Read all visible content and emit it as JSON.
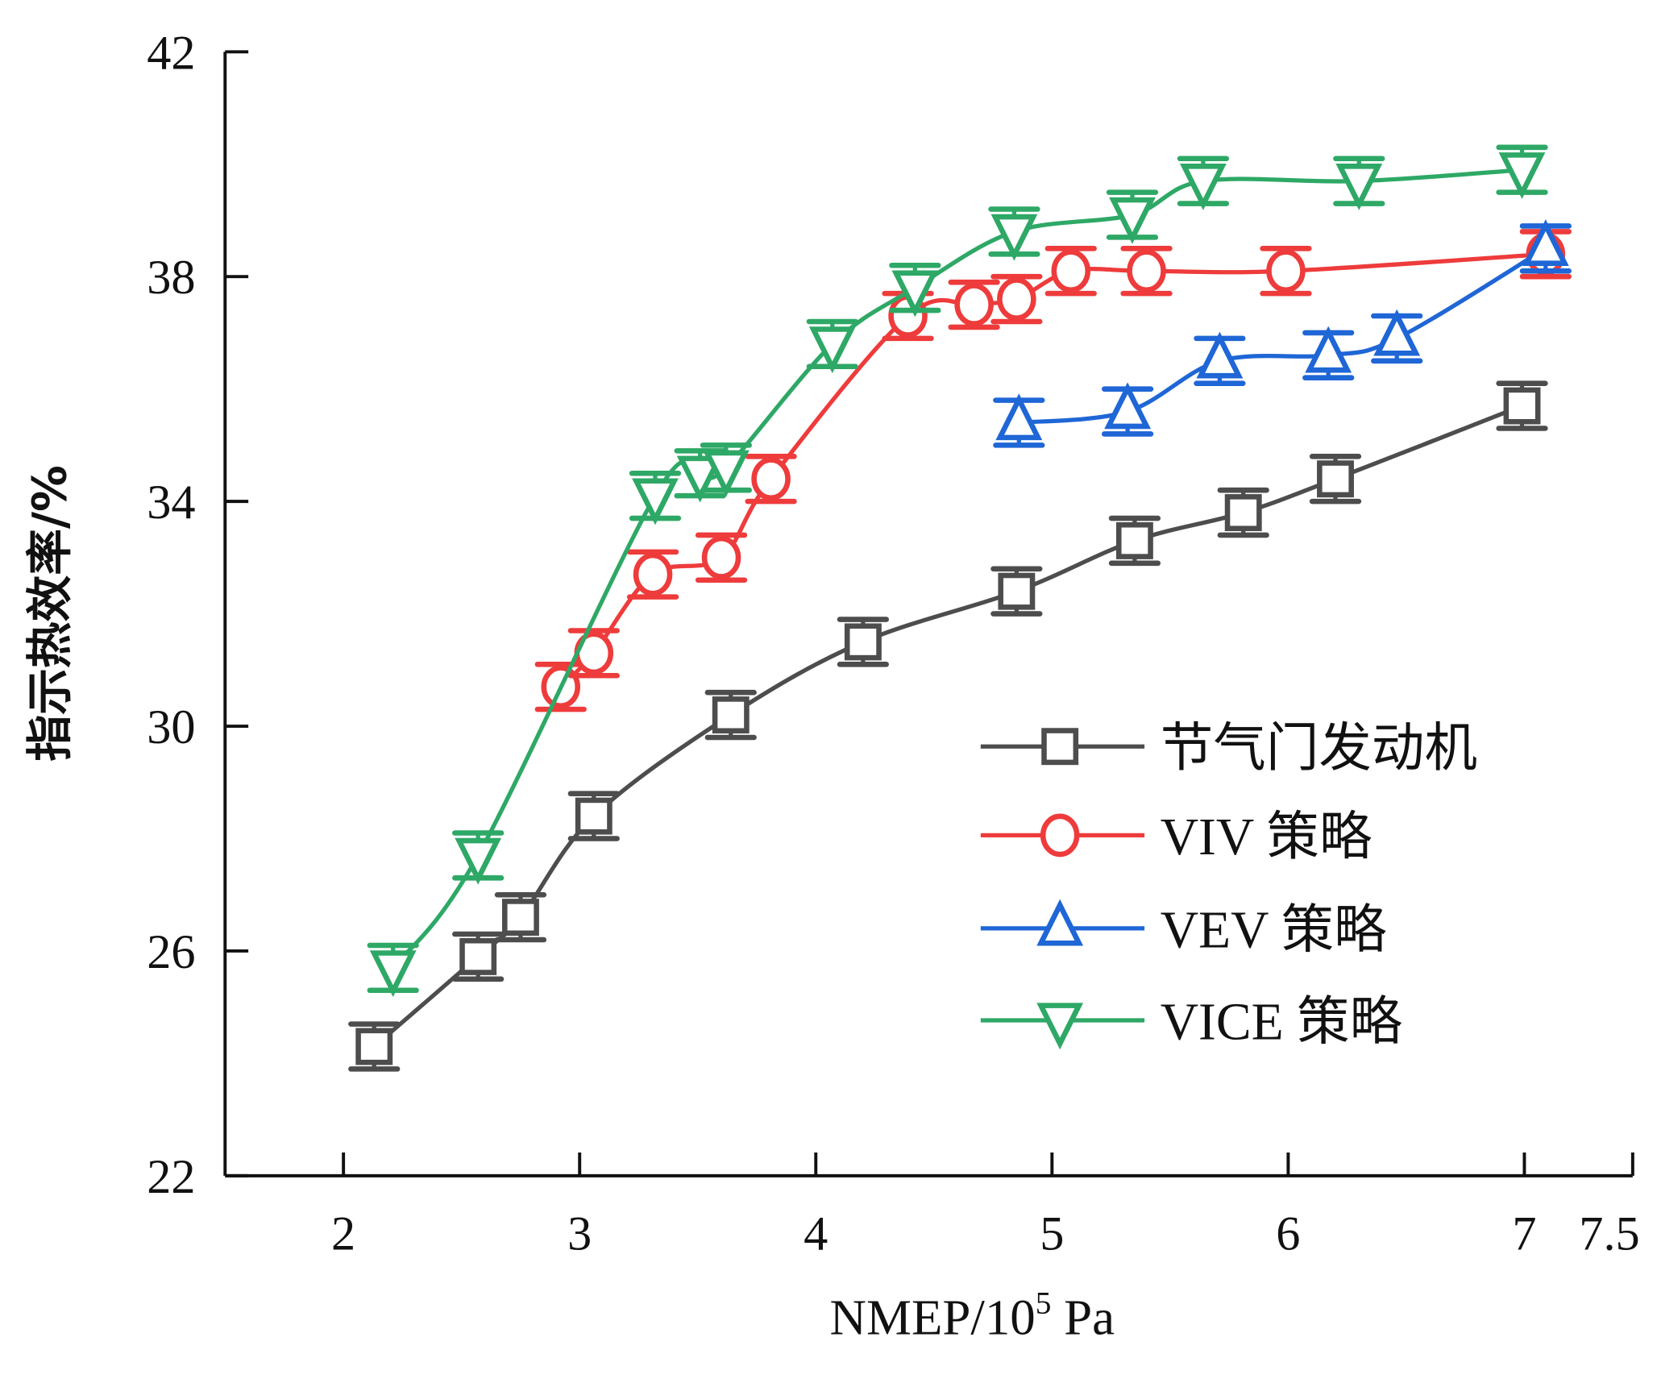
{
  "chart_data": {
    "type": "line",
    "title": "",
    "xlabel": "NMEP/10",
    "xlabel_sup": "5",
    "xlabel_unit": " Pa",
    "ylabel": "指示热效率/%",
    "xlim": [
      1.5,
      7.5
    ],
    "ylim": [
      22,
      42
    ],
    "xticks": [
      2,
      3,
      4,
      5,
      6,
      7,
      7.5
    ],
    "xtick_labels": [
      "2",
      "3",
      "4",
      "5",
      "6",
      "7",
      "7.5"
    ],
    "yticks": [
      22,
      26,
      30,
      34,
      38,
      42
    ],
    "ytick_labels": [
      "22",
      "26",
      "30",
      "34",
      "38",
      "42"
    ],
    "grid": false,
    "legend_position": "bottom-right",
    "error_bar": 0.4,
    "series": [
      {
        "name": "节气门发动机",
        "marker": "square",
        "color": "#4d4d4d",
        "x": [
          2.13,
          2.57,
          2.75,
          3.06,
          3.64,
          4.2,
          4.85,
          5.35,
          5.81,
          6.2,
          6.99
        ],
        "y": [
          24.3,
          25.9,
          26.6,
          28.4,
          30.2,
          31.5,
          32.4,
          33.3,
          33.8,
          34.4,
          35.7
        ]
      },
      {
        "name": "VIV 策略",
        "marker": "circle",
        "color": "#ee3b3b",
        "x": [
          2.92,
          3.06,
          3.31,
          3.6,
          3.81,
          4.39,
          4.67,
          4.85,
          5.08,
          5.4,
          5.99,
          7.09
        ],
        "y": [
          30.7,
          31.3,
          32.7,
          33.0,
          34.4,
          37.3,
          37.5,
          37.6,
          38.1,
          38.1,
          38.1,
          38.4
        ]
      },
      {
        "name": "VEV 策略",
        "marker": "triangle-up",
        "color": "#1f66d6",
        "x": [
          4.86,
          5.32,
          5.71,
          6.17,
          6.46,
          7.09
        ],
        "y": [
          35.4,
          35.6,
          36.5,
          36.6,
          36.9,
          38.5
        ]
      },
      {
        "name": "VICE 策略",
        "marker": "triangle-down",
        "color": "#2ea866",
        "x": [
          2.21,
          2.57,
          3.32,
          3.51,
          3.62,
          4.07,
          4.42,
          4.84,
          5.34,
          5.64,
          6.3,
          6.99
        ],
        "y": [
          25.7,
          27.7,
          34.1,
          34.5,
          34.6,
          36.8,
          37.8,
          38.8,
          39.1,
          39.7,
          39.7,
          39.9
        ]
      }
    ]
  }
}
